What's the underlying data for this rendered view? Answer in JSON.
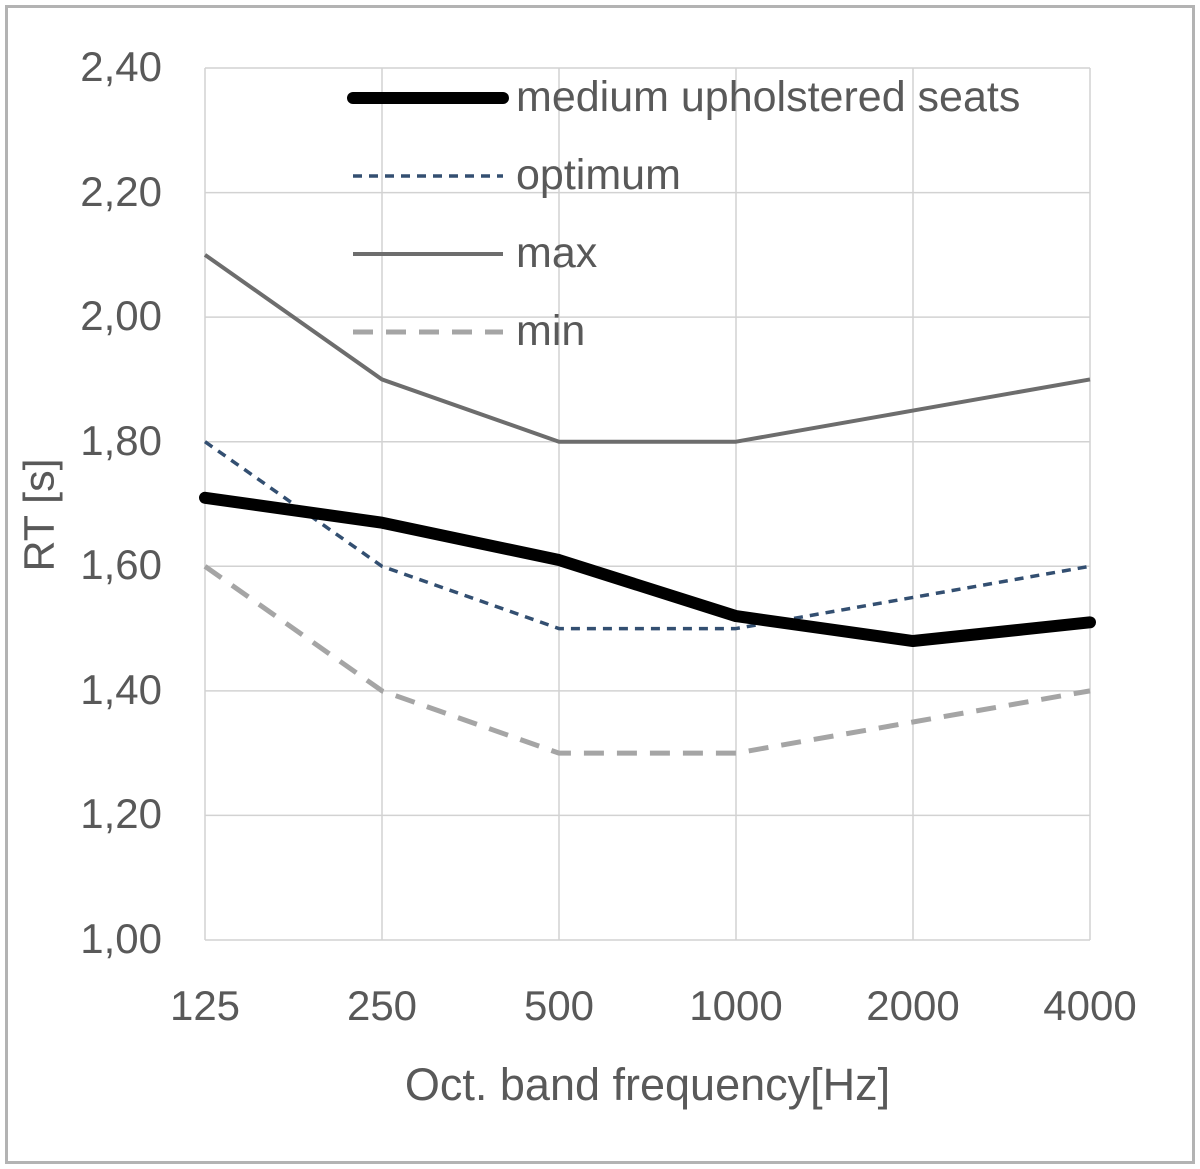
{
  "chart_data": {
    "type": "line",
    "xlabel": "Oct. band frequency[Hz]",
    "ylabel": "RT [s]",
    "categories": [
      "125",
      "250",
      "500",
      "1000",
      "2000",
      "4000"
    ],
    "ylim": [
      1.0,
      2.4
    ],
    "ytick_step": 0.2,
    "ytick_labels": [
      "2,40",
      "2,20",
      "2,00",
      "1,80",
      "1,60",
      "1,40",
      "1,20",
      "1,00"
    ],
    "grid": true,
    "legend_position": "top-inside",
    "series": [
      {
        "name": "medium upholstered seats",
        "values": [
          1.71,
          1.67,
          1.61,
          1.52,
          1.48,
          1.51
        ],
        "color": "#000000",
        "style": "solid-thick"
      },
      {
        "name": "optimum",
        "values": [
          1.8,
          1.6,
          1.5,
          1.5,
          1.55,
          1.6
        ],
        "color": "#334f71",
        "style": "dotted"
      },
      {
        "name": "max",
        "values": [
          2.1,
          1.9,
          1.8,
          1.8,
          1.85,
          1.9
        ],
        "color": "#6d6d6d",
        "style": "solid"
      },
      {
        "name": "min",
        "values": [
          1.6,
          1.4,
          1.3,
          1.3,
          1.35,
          1.4
        ],
        "color": "#a5a5a5",
        "style": "dashed"
      }
    ],
    "colors": {
      "grid": "#d2d2d2",
      "axis_text": "#595959",
      "frame_border": "#b3b3b3",
      "background": "#ffffff"
    }
  }
}
